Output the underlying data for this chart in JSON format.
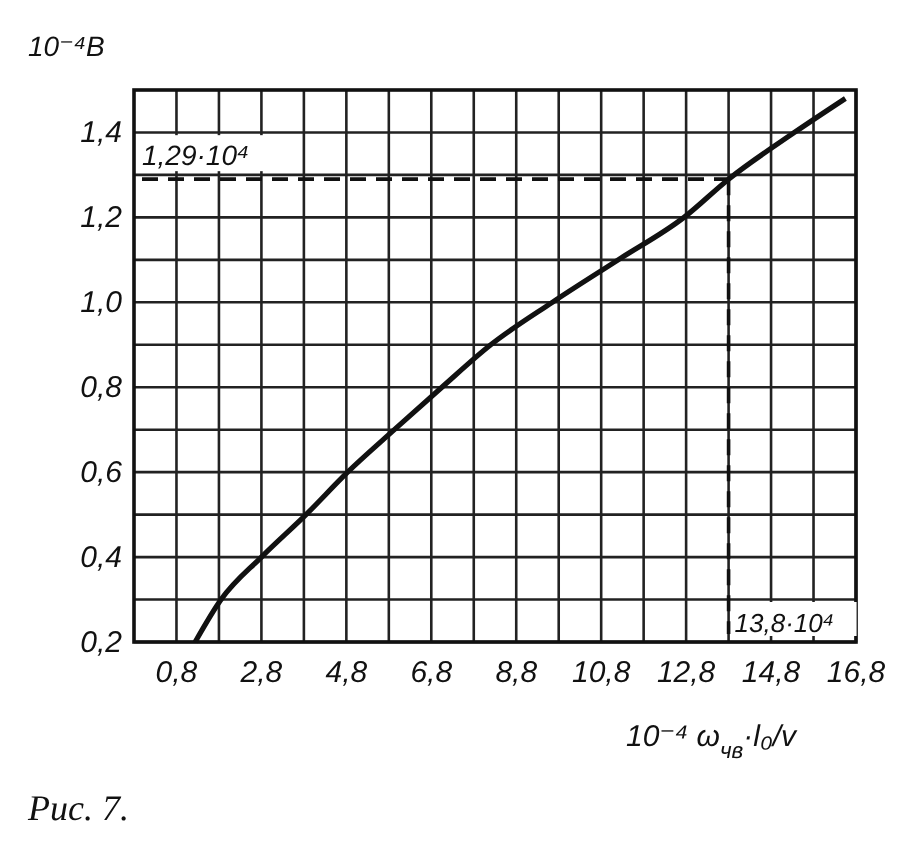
{
  "chart_data": {
    "type": "line",
    "ylabel": "10⁻⁴В",
    "xlabel": "10⁻⁴ ω$_{чв}$·l₀/v",
    "x": [
      1.24,
      1.85,
      2.8,
      3.85,
      4.83,
      5.93,
      7.05,
      8.2,
      9.65,
      11.2,
      12.75,
      13.8,
      15.35,
      16.55
    ],
    "series": [
      {
        "color": "#111111",
        "values": [
          0.2,
          0.3,
          0.4,
          0.5,
          0.6,
          0.7,
          0.8,
          0.9,
          1.0,
          1.1,
          1.2,
          1.29,
          1.4,
          1.48
        ]
      }
    ],
    "xlim": [
      -0.2,
      16.8
    ],
    "ylim": [
      0.2,
      1.5
    ],
    "xticks": [
      {
        "value": 0.8,
        "label": "0,8"
      },
      {
        "value": 1.8,
        "label": null
      },
      {
        "value": 2.8,
        "label": "2,8"
      },
      {
        "value": 3.8,
        "label": null
      },
      {
        "value": 4.8,
        "label": "4,8"
      },
      {
        "value": 5.8,
        "label": null
      },
      {
        "value": 6.8,
        "label": "6,8"
      },
      {
        "value": 7.8,
        "label": null
      },
      {
        "value": 8.8,
        "label": "8,8"
      },
      {
        "value": 9.8,
        "label": null
      },
      {
        "value": 10.8,
        "label": "10,8"
      },
      {
        "value": 11.8,
        "label": null
      },
      {
        "value": 12.8,
        "label": "12,8"
      },
      {
        "value": 13.8,
        "label": null
      },
      {
        "value": 14.8,
        "label": "14,8"
      },
      {
        "value": 15.8,
        "label": null
      },
      {
        "value": 16.8,
        "label": "16,8"
      }
    ],
    "yticks": [
      {
        "value": 0.2,
        "label": "0,2"
      },
      {
        "value": 0.3,
        "label": null
      },
      {
        "value": 0.4,
        "label": "0,4"
      },
      {
        "value": 0.5,
        "label": null
      },
      {
        "value": 0.6,
        "label": "0,6"
      },
      {
        "value": 0.7,
        "label": null
      },
      {
        "value": 0.8,
        "label": "0,8"
      },
      {
        "value": 0.9,
        "label": null
      },
      {
        "value": 1.0,
        "label": "1,0"
      },
      {
        "value": 1.1,
        "label": null
      },
      {
        "value": 1.2,
        "label": "1,2"
      },
      {
        "value": 1.3,
        "label": null
      },
      {
        "value": 1.4,
        "label": "1,4"
      }
    ],
    "grid": true,
    "marker": "none",
    "line_style": "solid",
    "ref_lines": [
      {
        "axis": "y",
        "value": 1.29,
        "label": "1,29·10⁴",
        "line_style": "dashed"
      },
      {
        "axis": "x",
        "value": 13.8,
        "label": "13,8·10⁴",
        "line_style": "dashed"
      }
    ],
    "annotations": [
      "Рис. 7."
    ]
  }
}
